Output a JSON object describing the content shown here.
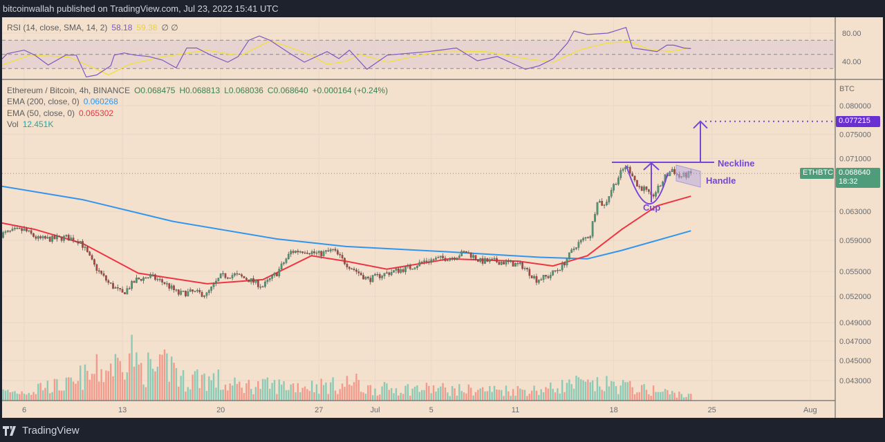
{
  "header": {
    "published": "bitcoinwallah published on TradingView.com, Jul 23, 2022 15:41 UTC"
  },
  "footer": {
    "brand": "TradingView"
  },
  "legend": {
    "rsi_label": "RSI (14, close, SMA, 14, 2)",
    "rsi_value": "58.18",
    "rsi_sma_value": "59.38",
    "rsi_extra": "∅ ∅",
    "symbol": "Ethereum / Bitcoin, 4h, BINANCE",
    "open": "O0.068475",
    "high": "H0.068813",
    "low": "L0.068036",
    "close": "C0.068640",
    "change": "+0.000164 (+0.24%)",
    "ema200_label": "EMA (200, close, 0)",
    "ema200_value": "0.060268",
    "ema50_label": "EMA (50, close, 0)",
    "ema50_value": "0.065302",
    "vol_label": "Vol",
    "vol_value": "12.451K"
  },
  "price_axis": {
    "unit": "BTC",
    "symbol_tag": "ETHBTC",
    "last_price": "0.068640",
    "countdown": "18:32",
    "target_price": "0.077215"
  },
  "annotations": {
    "neckline": "Neckline",
    "handle": "Handle",
    "cup": "Cup"
  },
  "colors": {
    "background": "#f3e0cd",
    "up": "#4a9b73",
    "down": "#b2433a",
    "vol_up": "#8ccab6",
    "vol_down": "#f29a8b",
    "ema200": "#2f95ee",
    "ema50": "#ee3442",
    "rsi": "#7e57c2",
    "rsi_sma": "#f2e03a",
    "annotation": "#7646d6",
    "target_tag": "#6a2fd1",
    "last_tag": "#4f9c7a"
  },
  "chart_data": {
    "type": "candlestick",
    "interval": "4h",
    "price_scale": "log",
    "ylim": [
      0.0418,
      0.0835
    ],
    "price_ticks": [
      "0.080000",
      "0.075000",
      "0.071000",
      "0.063000",
      "0.059000",
      "0.055000",
      "0.052000",
      "0.049000",
      "0.047000",
      "0.045000",
      "0.043000"
    ],
    "rsi_ticks": [
      "80.00",
      "40.00"
    ],
    "rsi_bands": [
      70,
      50,
      30
    ],
    "time_ticks": [
      {
        "label": "6",
        "date": "2022-06-06T00:00"
      },
      {
        "label": "13",
        "date": "2022-06-13T00:00"
      },
      {
        "label": "20",
        "date": "2022-06-20T00:00"
      },
      {
        "label": "27",
        "date": "2022-06-27T00:00"
      },
      {
        "label": "Jul",
        "date": "2022-07-01T00:00"
      },
      {
        "label": "5",
        "date": "2022-07-05T00:00"
      },
      {
        "label": "11",
        "date": "2022-07-11T00:00"
      },
      {
        "label": "18",
        "date": "2022-07-18T00:00"
      },
      {
        "label": "25",
        "date": "2022-07-25T00:00"
      },
      {
        "label": "Aug",
        "date": "2022-08-01T00:00"
      }
    ],
    "close": [
      [
        "2022-06-04T08:00",
        0.0598
      ],
      [
        "2022-06-05T08:00",
        0.0603
      ],
      [
        "2022-06-06T00:00",
        0.0604
      ],
      [
        "2022-06-07T00:00",
        0.0592
      ],
      [
        "2022-06-08T00:00",
        0.0592
      ],
      [
        "2022-06-09T00:00",
        0.0594
      ],
      [
        "2022-06-10T00:00",
        0.0589
      ],
      [
        "2022-06-11T00:00",
        0.0557
      ],
      [
        "2022-06-12T00:00",
        0.0536
      ],
      [
        "2022-06-13T00:00",
        0.0523
      ],
      [
        "2022-06-14T00:00",
        0.054
      ],
      [
        "2022-06-15T00:00",
        0.0544
      ],
      [
        "2022-06-16T00:00",
        0.0536
      ],
      [
        "2022-06-17T00:00",
        0.0523
      ],
      [
        "2022-06-18T00:00",
        0.0525
      ],
      [
        "2022-06-19T00:00",
        0.0522
      ],
      [
        "2022-06-20T00:00",
        0.0544
      ],
      [
        "2022-06-21T00:00",
        0.0546
      ],
      [
        "2022-06-22T00:00",
        0.054
      ],
      [
        "2022-06-23T00:00",
        0.0532
      ],
      [
        "2022-06-24T00:00",
        0.0548
      ],
      [
        "2022-06-25T00:00",
        0.0575
      ],
      [
        "2022-06-26T00:00",
        0.0577
      ],
      [
        "2022-06-27T00:00",
        0.0572
      ],
      [
        "2022-06-28T00:00",
        0.0577
      ],
      [
        "2022-06-29T00:00",
        0.0559
      ],
      [
        "2022-06-30T12:00",
        0.054
      ],
      [
        "2022-07-01T12:00",
        0.0546
      ],
      [
        "2022-07-02T12:00",
        0.0551
      ],
      [
        "2022-07-03T12:00",
        0.0555
      ],
      [
        "2022-07-04T12:00",
        0.0563
      ],
      [
        "2022-07-05T12:00",
        0.0566
      ],
      [
        "2022-07-06T12:00",
        0.0568
      ],
      [
        "2022-07-07T12:00",
        0.0575
      ],
      [
        "2022-07-08T12:00",
        0.0563
      ],
      [
        "2022-07-09T12:00",
        0.0563
      ],
      [
        "2022-07-10T12:00",
        0.0561
      ],
      [
        "2022-07-11T12:00",
        0.0557
      ],
      [
        "2022-07-12T12:00",
        0.054
      ],
      [
        "2022-07-13T08:00",
        0.0544
      ],
      [
        "2022-07-14T08:00",
        0.0557
      ],
      [
        "2022-07-15T08:00",
        0.0584
      ],
      [
        "2022-07-16T08:00",
        0.0598
      ],
      [
        "2022-07-16T20:00",
        0.0647
      ],
      [
        "2022-07-17T08:00",
        0.0638
      ],
      [
        "2022-07-17T20:00",
        0.0662
      ],
      [
        "2022-07-18T08:00",
        0.0681
      ],
      [
        "2022-07-18T20:00",
        0.0698
      ],
      [
        "2022-07-19T08:00",
        0.0686
      ],
      [
        "2022-07-19T16:00",
        0.0667
      ],
      [
        "2022-07-20T04:00",
        0.0663
      ],
      [
        "2022-07-20T16:00",
        0.065
      ],
      [
        "2022-07-21T04:00",
        0.0663
      ],
      [
        "2022-07-21T16:00",
        0.0681
      ],
      [
        "2022-07-22T04:00",
        0.0693
      ],
      [
        "2022-07-22T16:00",
        0.0681
      ],
      [
        "2022-07-23T12:00",
        0.0686
      ]
    ],
    "ema200": [
      [
        "2022-06-04T08:00",
        0.0667
      ],
      [
        "2022-06-10T04:00",
        0.0647
      ],
      [
        "2022-06-16T14:00",
        0.0616
      ],
      [
        "2022-06-24T00:00",
        0.0592
      ],
      [
        "2022-06-28T22:00",
        0.0582
      ],
      [
        "2022-07-06T07:00",
        0.0575
      ],
      [
        "2022-07-12T17:00",
        0.0568
      ],
      [
        "2022-07-16T03:00",
        0.0566
      ],
      [
        "2022-07-18T14:00",
        0.0577
      ],
      [
        "2022-07-23T12:00",
        0.0603
      ]
    ],
    "ema50": [
      [
        "2022-06-04T08:00",
        0.0614
      ],
      [
        "2022-06-06T18:00",
        0.0605
      ],
      [
        "2022-06-10T04:00",
        0.0586
      ],
      [
        "2022-06-14T03:00",
        0.0548
      ],
      [
        "2022-06-19T01:00",
        0.0535
      ],
      [
        "2022-06-23T00:00",
        0.054
      ],
      [
        "2022-06-26T11:00",
        0.057
      ],
      [
        "2022-06-28T22:00",
        0.0563
      ],
      [
        "2022-07-01T20:00",
        0.0553
      ],
      [
        "2022-07-06T07:00",
        0.0566
      ],
      [
        "2022-07-11T05:00",
        0.0563
      ],
      [
        "2022-07-13T16:00",
        0.0557
      ],
      [
        "2022-07-16T03:00",
        0.057
      ],
      [
        "2022-07-18T14:00",
        0.0605
      ],
      [
        "2022-07-21T02:00",
        0.0638
      ],
      [
        "2022-07-23T12:00",
        0.0652
      ]
    ],
    "rsi": [
      [
        "2022-06-04T07:00",
        41
      ],
      [
        "2022-06-04T19:00",
        51
      ],
      [
        "2022-06-06T00:00",
        56
      ],
      [
        "2022-06-06T18:00",
        49
      ],
      [
        "2022-06-07T17:00",
        35
      ],
      [
        "2022-06-08T23:00",
        49
      ],
      [
        "2022-06-09T17:00",
        49
      ],
      [
        "2022-06-10T10:00",
        18
      ],
      [
        "2022-06-11T04:00",
        21
      ],
      [
        "2022-06-12T04:00",
        34
      ],
      [
        "2022-06-12T10:00",
        49
      ],
      [
        "2022-06-13T03:00",
        52
      ],
      [
        "2022-06-13T21:00",
        49
      ],
      [
        "2022-06-14T21:00",
        47
      ],
      [
        "2022-06-15T20:00",
        42
      ],
      [
        "2022-06-16T20:00",
        31
      ],
      [
        "2022-06-17T14:00",
        59
      ],
      [
        "2022-06-18T07:00",
        59
      ],
      [
        "2022-06-19T07:00",
        49
      ],
      [
        "2022-06-20T12:00",
        39
      ],
      [
        "2022-06-21T06:00",
        47
      ],
      [
        "2022-06-22T00:00",
        70
      ],
      [
        "2022-06-22T18:00",
        76
      ],
      [
        "2022-06-23T12:00",
        70
      ],
      [
        "2022-06-24T23:00",
        51
      ],
      [
        "2022-06-25T23:00",
        39
      ],
      [
        "2022-06-27T14:00",
        54
      ],
      [
        "2022-06-28T10:00",
        44
      ],
      [
        "2022-06-29T04:00",
        56
      ],
      [
        "2022-06-30T10:00",
        29
      ],
      [
        "2022-07-01T21:00",
        49
      ],
      [
        "2022-07-04T19:00",
        54
      ],
      [
        "2022-07-06T19:00",
        59
      ],
      [
        "2022-07-08T07:00",
        41
      ],
      [
        "2022-07-09T17:00",
        47
      ],
      [
        "2022-07-11T17:00",
        29
      ],
      [
        "2022-07-12T17:00",
        34
      ],
      [
        "2022-07-13T17:00",
        44
      ],
      [
        "2022-07-14T17:00",
        66
      ],
      [
        "2022-07-15T04:00",
        83
      ],
      [
        "2022-07-16T03:00",
        78
      ],
      [
        "2022-07-17T14:00",
        80
      ],
      [
        "2022-07-18T21:00",
        88
      ],
      [
        "2022-07-19T08:00",
        59
      ],
      [
        "2022-07-20T02:00",
        57
      ],
      [
        "2022-07-21T02:00",
        54
      ],
      [
        "2022-07-21T19:00",
        63
      ],
      [
        "2022-07-22T07:00",
        63
      ],
      [
        "2022-07-23T00:00",
        59
      ],
      [
        "2022-07-23T12:00",
        58.18
      ]
    ],
    "rsi_sma": [
      [
        "2022-06-04T07:00",
        34
      ],
      [
        "2022-06-06T10:00",
        49
      ],
      [
        "2022-06-09T05:00",
        46
      ],
      [
        "2022-06-11T04:00",
        29
      ],
      [
        "2022-06-12T00:00",
        21
      ],
      [
        "2022-06-13T12:00",
        36
      ],
      [
        "2022-06-15T18:00",
        46
      ],
      [
        "2022-06-19T01:00",
        56
      ],
      [
        "2022-06-20T17:00",
        50
      ],
      [
        "2022-06-21T12:00",
        49
      ],
      [
        "2022-06-23T12:00",
        69
      ],
      [
        "2022-06-24T19:00",
        61
      ],
      [
        "2022-06-26T10:00",
        49
      ],
      [
        "2022-06-27T14:00",
        36
      ],
      [
        "2022-06-28T22:00",
        40
      ],
      [
        "2022-06-29T22:00",
        50
      ],
      [
        "2022-07-01T21:00",
        39
      ],
      [
        "2022-07-05T19:00",
        55
      ],
      [
        "2022-07-08T19:00",
        54
      ],
      [
        "2022-07-11T17:00",
        44
      ],
      [
        "2022-07-13T17:00",
        39
      ],
      [
        "2022-07-15T16:00",
        57
      ],
      [
        "2022-07-17T14:00",
        66
      ],
      [
        "2022-07-19T02:00",
        68
      ],
      [
        "2022-07-20T14:00",
        57
      ],
      [
        "2022-07-22T01:00",
        54
      ],
      [
        "2022-07-23T12:00",
        59.38
      ]
    ],
    "volume_daily_k": [
      [
        "2022-06-04",
        22
      ],
      [
        "2022-06-05",
        22
      ],
      [
        "2022-06-06",
        24
      ],
      [
        "2022-06-07",
        37
      ],
      [
        "2022-06-08",
        37
      ],
      [
        "2022-06-09",
        40
      ],
      [
        "2022-06-10",
        60
      ],
      [
        "2022-06-11",
        75
      ],
      [
        "2022-06-12",
        90
      ],
      [
        "2022-06-13",
        127
      ],
      [
        "2022-06-14",
        82
      ],
      [
        "2022-06-15",
        75
      ],
      [
        "2022-06-16",
        90
      ],
      [
        "2022-06-17",
        52
      ],
      [
        "2022-06-18",
        60
      ],
      [
        "2022-06-19",
        52
      ],
      [
        "2022-06-20",
        38
      ],
      [
        "2022-06-21",
        38
      ],
      [
        "2022-06-22",
        38
      ],
      [
        "2022-06-23",
        38
      ],
      [
        "2022-06-24",
        38
      ],
      [
        "2022-06-25",
        38
      ],
      [
        "2022-06-26",
        38
      ],
      [
        "2022-06-27",
        38
      ],
      [
        "2022-06-28",
        38
      ],
      [
        "2022-06-29",
        45
      ],
      [
        "2022-06-30",
        30
      ],
      [
        "2022-07-01",
        30
      ],
      [
        "2022-07-02",
        30
      ],
      [
        "2022-07-03",
        30
      ],
      [
        "2022-07-04",
        30
      ],
      [
        "2022-07-05",
        30
      ],
      [
        "2022-07-06",
        27
      ],
      [
        "2022-07-07",
        27
      ],
      [
        "2022-07-08",
        27
      ],
      [
        "2022-07-09",
        27
      ],
      [
        "2022-07-10",
        27
      ],
      [
        "2022-07-11",
        27
      ],
      [
        "2022-07-12",
        27
      ],
      [
        "2022-07-13",
        30
      ],
      [
        "2022-07-14",
        38
      ],
      [
        "2022-07-15",
        42
      ],
      [
        "2022-07-16",
        38
      ],
      [
        "2022-07-17",
        40
      ],
      [
        "2022-07-18",
        38
      ],
      [
        "2022-07-19",
        33
      ],
      [
        "2022-07-20",
        27
      ],
      [
        "2022-07-21",
        22
      ],
      [
        "2022-07-22",
        18
      ],
      [
        "2022-07-23",
        12
      ]
    ],
    "neckline_price": 0.0704,
    "target_price": 0.077215,
    "last_price": 0.06864
  }
}
